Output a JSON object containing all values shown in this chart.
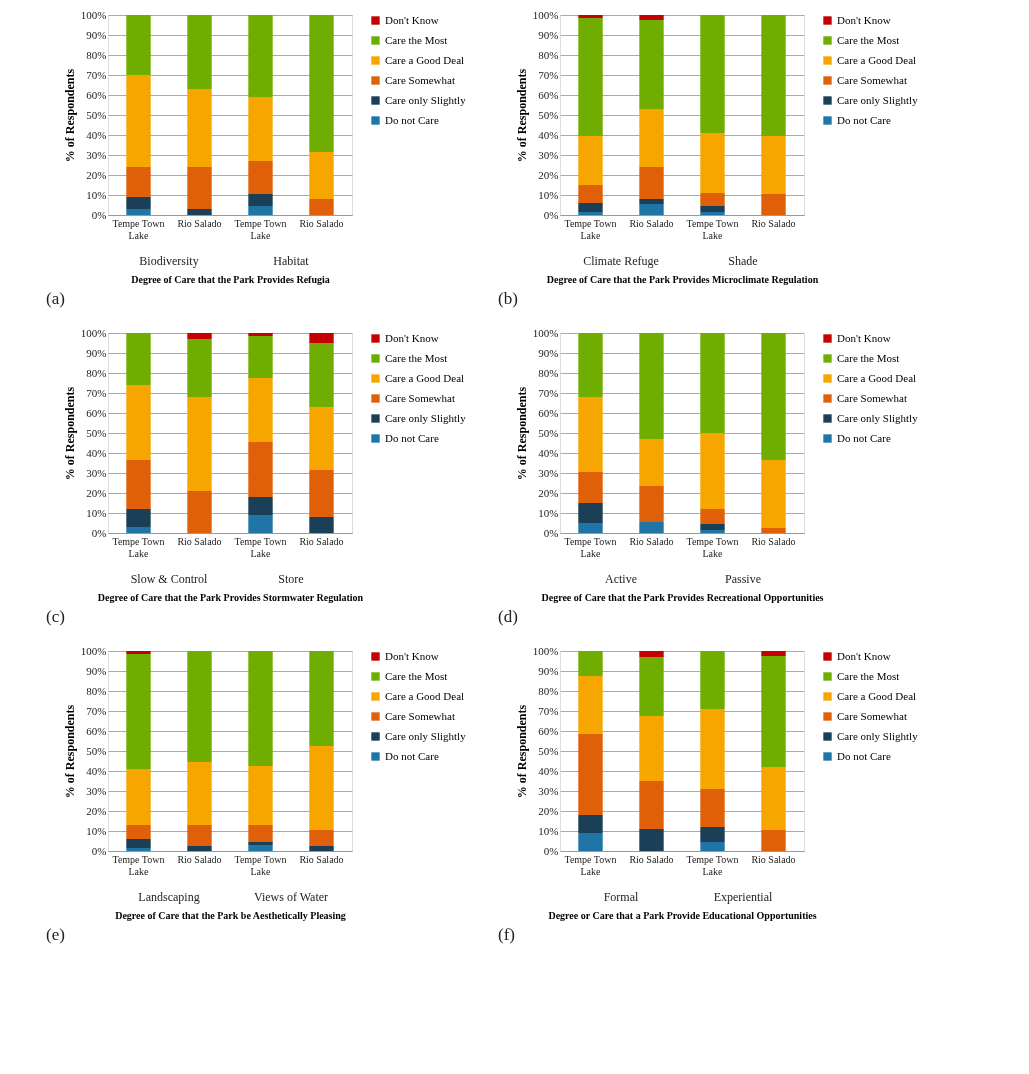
{
  "chart_data": [
    {
      "type": "bar",
      "stacked": true,
      "xlabel": "Degree of Care that the Park Provides Refugia",
      "ylabel": "% of Respondents",
      "categories": [
        "Tempe Town Lake",
        "Rio Salado",
        "Tempe Town Lake",
        "Rio Salado"
      ],
      "ylim": [
        0,
        100
      ],
      "yticks": [
        {
          "value": 0,
          "label": "0%"
        },
        {
          "value": 10,
          "label": "10%"
        },
        {
          "value": 20,
          "label": "20%"
        },
        {
          "value": 30,
          "label": "30%"
        },
        {
          "value": 40,
          "label": "40%"
        },
        {
          "value": 50,
          "label": "50%"
        },
        {
          "value": 60,
          "label": "60%"
        },
        {
          "value": 70,
          "label": "70%"
        },
        {
          "value": 80,
          "label": "80%"
        },
        {
          "value": 90,
          "label": "90%"
        },
        {
          "value": 100,
          "label": "100%"
        }
      ],
      "grid": "y",
      "legend": "right",
      "annotations": [
        "Biodiversity",
        "Habitat",
        "(a)"
      ],
      "series": [
        {
          "name": "Do not Care",
          "color": "#1f76a6",
          "values": [
            3,
            0,
            4.5,
            0
          ]
        },
        {
          "name": "Care only Slightly",
          "color": "#1b3f56",
          "values": [
            6,
            3,
            6,
            0
          ]
        },
        {
          "name": "Care Somewhat",
          "color": "#e0600a",
          "values": [
            15,
            21,
            16.5,
            8
          ]
        },
        {
          "name": "Care a Good Deal",
          "color": "#f7a600",
          "values": [
            46,
            39,
            32,
            23.5
          ]
        },
        {
          "name": "Care the Most",
          "color": "#6fae00",
          "values": [
            30,
            37,
            41,
            68.5
          ]
        },
        {
          "name": "Don't Know",
          "color": "#c40000",
          "values": [
            0,
            0,
            0,
            0
          ]
        }
      ]
    },
    {
      "type": "bar",
      "stacked": true,
      "xlabel": "Degree of Care that the Park Provides Microclimate Regulation",
      "ylabel": "% of Respondents",
      "categories": [
        "Tempe Town Lake",
        "Rio Salado",
        "Tempe Town Lake",
        "Rio Salado"
      ],
      "ylim": [
        0,
        100
      ],
      "yticks": [
        {
          "value": 0,
          "label": "0%"
        },
        {
          "value": 10,
          "label": "10%"
        },
        {
          "value": 20,
          "label": "20%"
        },
        {
          "value": 30,
          "label": "30%"
        },
        {
          "value": 40,
          "label": "40%"
        },
        {
          "value": 50,
          "label": "50%"
        },
        {
          "value": 60,
          "label": "60%"
        },
        {
          "value": 70,
          "label": "70%"
        },
        {
          "value": 80,
          "label": "80%"
        },
        {
          "value": 90,
          "label": "90%"
        },
        {
          "value": 100,
          "label": "100%"
        }
      ],
      "grid": "y",
      "legend": "right",
      "annotations": [
        "Climate Refuge",
        "Shade",
        "(b)"
      ],
      "series": [
        {
          "name": "Do not Care",
          "color": "#1f76a6",
          "values": [
            1.5,
            5.5,
            1.5,
            0
          ]
        },
        {
          "name": "Care only Slightly",
          "color": "#1b3f56",
          "values": [
            4.5,
            2.5,
            3,
            0
          ]
        },
        {
          "name": "Care Somewhat",
          "color": "#e0600a",
          "values": [
            9,
            16,
            6.5,
            10.5
          ]
        },
        {
          "name": "Care a Good Deal",
          "color": "#f7a600",
          "values": [
            24.5,
            29,
            30,
            29
          ]
        },
        {
          "name": "Care the Most",
          "color": "#6fae00",
          "values": [
            59,
            44.5,
            59,
            60.5
          ]
        },
        {
          "name": "Don't Know",
          "color": "#c40000",
          "values": [
            1.5,
            2.5,
            0,
            0
          ]
        }
      ]
    },
    {
      "type": "bar",
      "stacked": true,
      "xlabel": "Degree of Care that the Park Provides Stormwater Regulation",
      "ylabel": "% of Respondents",
      "categories": [
        "Tempe Town Lake",
        "Rio Salado",
        "Tempe Town Lake",
        "Rio Salado"
      ],
      "ylim": [
        0,
        100
      ],
      "yticks": [
        {
          "value": 0,
          "label": "0%"
        },
        {
          "value": 10,
          "label": "10%"
        },
        {
          "value": 20,
          "label": "20%"
        },
        {
          "value": 30,
          "label": "30%"
        },
        {
          "value": 40,
          "label": "40%"
        },
        {
          "value": 50,
          "label": "50%"
        },
        {
          "value": 60,
          "label": "60%"
        },
        {
          "value": 70,
          "label": "70%"
        },
        {
          "value": 80,
          "label": "80%"
        },
        {
          "value": 90,
          "label": "90%"
        },
        {
          "value": 100,
          "label": "100%"
        }
      ],
      "grid": "y",
      "legend": "right",
      "annotations": [
        "Slow & Control",
        "Store",
        "(c)"
      ],
      "series": [
        {
          "name": "Do not Care",
          "color": "#1f76a6",
          "values": [
            3,
            0,
            9,
            0
          ]
        },
        {
          "name": "Care only Slightly",
          "color": "#1b3f56",
          "values": [
            9,
            0,
            9,
            8
          ]
        },
        {
          "name": "Care Somewhat",
          "color": "#e0600a",
          "values": [
            24.5,
            21,
            27.5,
            23.5
          ]
        },
        {
          "name": "Care a Good Deal",
          "color": "#f7a600",
          "values": [
            37.5,
            47,
            32,
            31.5
          ]
        },
        {
          "name": "Care the Most",
          "color": "#6fae00",
          "values": [
            26,
            29,
            21,
            32
          ]
        },
        {
          "name": "Don't Know",
          "color": "#c40000",
          "values": [
            0,
            3,
            1.5,
            5
          ]
        }
      ]
    },
    {
      "type": "bar",
      "stacked": true,
      "xlabel": "Degree of Care that the Park Provides Recreational Opportunities",
      "ylabel": "% of Respondents",
      "categories": [
        "Tempe Town Lake",
        "Rio Salado",
        "Tempe Town Lake",
        "Rio Salado"
      ],
      "ylim": [
        0,
        100
      ],
      "yticks": [
        {
          "value": 0,
          "label": "0%"
        },
        {
          "value": 10,
          "label": "10%"
        },
        {
          "value": 20,
          "label": "20%"
        },
        {
          "value": 30,
          "label": "30%"
        },
        {
          "value": 40,
          "label": "40%"
        },
        {
          "value": 50,
          "label": "50%"
        },
        {
          "value": 60,
          "label": "60%"
        },
        {
          "value": 70,
          "label": "70%"
        },
        {
          "value": 80,
          "label": "80%"
        },
        {
          "value": 90,
          "label": "90%"
        },
        {
          "value": 100,
          "label": "100%"
        }
      ],
      "grid": "y",
      "legend": "right",
      "annotations": [
        "Active",
        "Passive",
        "(d)"
      ],
      "series": [
        {
          "name": "Do not Care",
          "color": "#1f76a6",
          "values": [
            5,
            5.5,
            1.5,
            0
          ]
        },
        {
          "name": "Care only Slightly",
          "color": "#1b3f56",
          "values": [
            10,
            0,
            3,
            0
          ]
        },
        {
          "name": "Care Somewhat",
          "color": "#e0600a",
          "values": [
            15.5,
            18,
            7.5,
            2.5
          ]
        },
        {
          "name": "Care a Good Deal",
          "color": "#f7a600",
          "values": [
            37.5,
            23.5,
            38,
            34
          ]
        },
        {
          "name": "Care the Most",
          "color": "#6fae00",
          "values": [
            32,
            53,
            50,
            63.5
          ]
        },
        {
          "name": "Don't Know",
          "color": "#c40000",
          "values": [
            0,
            0,
            0,
            0
          ]
        }
      ]
    },
    {
      "type": "bar",
      "stacked": true,
      "xlabel": "Degree of Care that the Park be Aesthetically Pleasing",
      "ylabel": "% of Respondents",
      "categories": [
        "Tempe Town Lake",
        "Rio Salado",
        "Tempe Town Lake",
        "Rio Salado"
      ],
      "ylim": [
        0,
        100
      ],
      "yticks": [
        {
          "value": 0,
          "label": "0%"
        },
        {
          "value": 10,
          "label": "10%"
        },
        {
          "value": 20,
          "label": "20%"
        },
        {
          "value": 30,
          "label": "30%"
        },
        {
          "value": 40,
          "label": "40%"
        },
        {
          "value": 50,
          "label": "50%"
        },
        {
          "value": 60,
          "label": "60%"
        },
        {
          "value": 70,
          "label": "70%"
        },
        {
          "value": 80,
          "label": "80%"
        },
        {
          "value": 90,
          "label": "90%"
        },
        {
          "value": 100,
          "label": "100%"
        }
      ],
      "grid": "y",
      "legend": "right",
      "annotations": [
        "Landscaping",
        "Views of Water",
        "(e)"
      ],
      "series": [
        {
          "name": "Do not Care",
          "color": "#1f76a6",
          "values": [
            1.5,
            0,
            3,
            0
          ]
        },
        {
          "name": "Care only Slightly",
          "color": "#1b3f56",
          "values": [
            4.5,
            2.5,
            1.5,
            2.5
          ]
        },
        {
          "name": "Care Somewhat",
          "color": "#e0600a",
          "values": [
            7,
            10.5,
            8.5,
            8
          ]
        },
        {
          "name": "Care a Good Deal",
          "color": "#f7a600",
          "values": [
            28,
            31.5,
            29.5,
            42
          ]
        },
        {
          "name": "Care the Most",
          "color": "#6fae00",
          "values": [
            57.5,
            55.5,
            57.5,
            47.5
          ]
        },
        {
          "name": "Don't Know",
          "color": "#c40000",
          "values": [
            1.5,
            0,
            0,
            0
          ]
        }
      ]
    },
    {
      "type": "bar",
      "stacked": true,
      "xlabel": "Degree or Care that a Park Provide Educational Opportunities",
      "ylabel": "% of Respondents",
      "categories": [
        "Tempe Town Lake",
        "Rio Salado",
        "Tempe Town Lake",
        "Rio Salado"
      ],
      "ylim": [
        0,
        100
      ],
      "yticks": [
        {
          "value": 0,
          "label": "0%"
        },
        {
          "value": 10,
          "label": "10%"
        },
        {
          "value": 20,
          "label": "20%"
        },
        {
          "value": 30,
          "label": "30%"
        },
        {
          "value": 40,
          "label": "40%"
        },
        {
          "value": 50,
          "label": "50%"
        },
        {
          "value": 60,
          "label": "60%"
        },
        {
          "value": 70,
          "label": "70%"
        },
        {
          "value": 80,
          "label": "80%"
        },
        {
          "value": 90,
          "label": "90%"
        },
        {
          "value": 100,
          "label": "100%"
        }
      ],
      "grid": "y",
      "legend": "right",
      "annotations": [
        "Formal",
        "Experiential",
        "(f)"
      ],
      "series": [
        {
          "name": "Do not Care",
          "color": "#1f76a6",
          "values": [
            9,
            0,
            4.5,
            0
          ]
        },
        {
          "name": "Care only Slightly",
          "color": "#1b3f56",
          "values": [
            9,
            11,
            7.5,
            0
          ]
        },
        {
          "name": "Care Somewhat",
          "color": "#e0600a",
          "values": [
            40.5,
            24,
            19,
            10.5
          ]
        },
        {
          "name": "Care a Good Deal",
          "color": "#f7a600",
          "values": [
            29,
            32.5,
            40,
            31.5
          ]
        },
        {
          "name": "Care the Most",
          "color": "#6fae00",
          "values": [
            12.5,
            29.5,
            29,
            55.5
          ]
        },
        {
          "name": "Don't Know",
          "color": "#c40000",
          "values": [
            0,
            3,
            0,
            2.5
          ]
        }
      ]
    }
  ]
}
